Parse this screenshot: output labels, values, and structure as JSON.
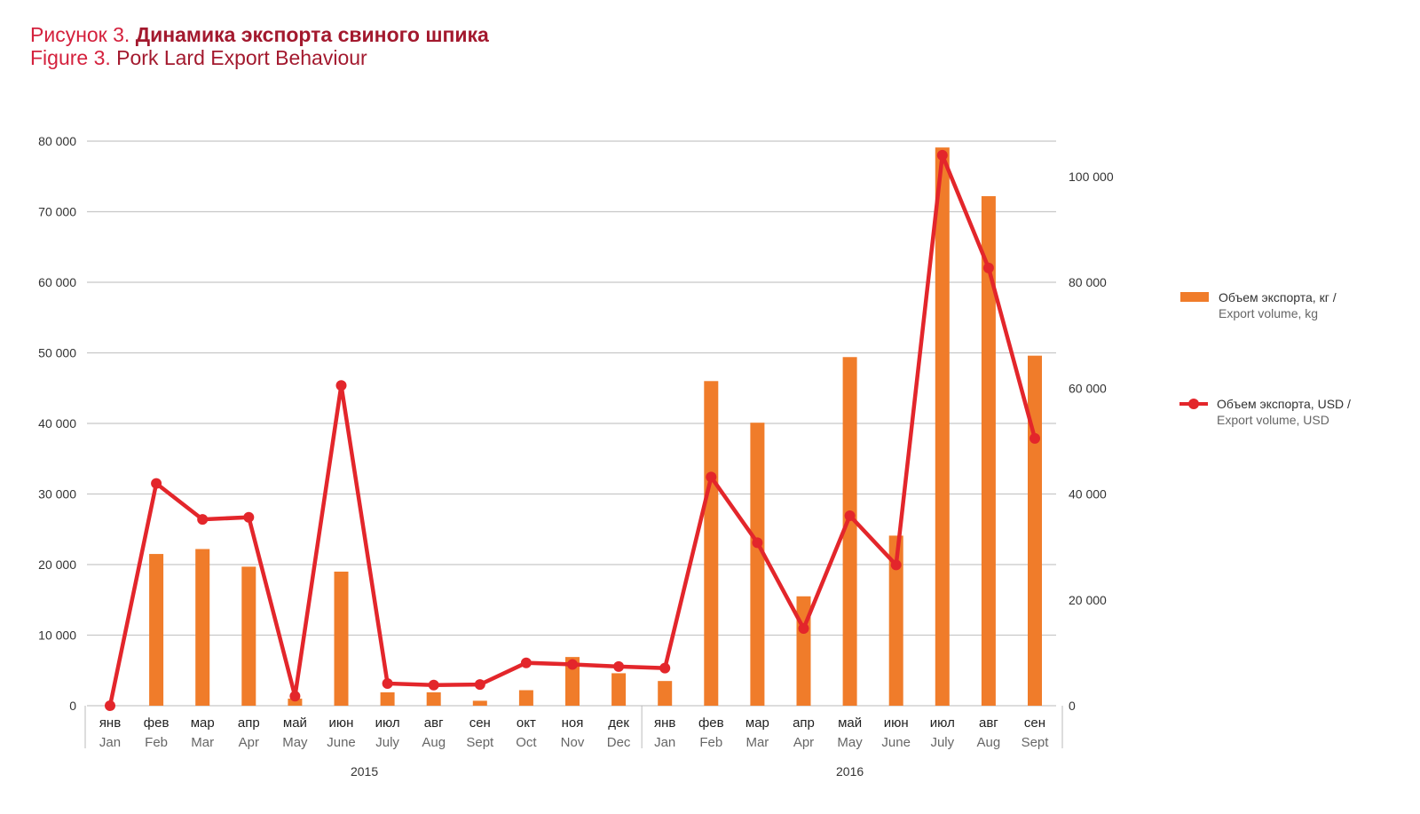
{
  "title": {
    "ru_prefix": "Рисунок 3.",
    "ru_main": "Динамика экспорта свиного шпика",
    "en_prefix": "Figure 3.",
    "en_main": "Pork Lard Export Behaviour"
  },
  "chart_data": {
    "type": "bar+line",
    "categories_ru": [
      "янв",
      "фев",
      "мар",
      "апр",
      "май",
      "июн",
      "июл",
      "авг",
      "сен",
      "окт",
      "ноя",
      "дек",
      "янв",
      "фев",
      "мар",
      "апр",
      "май",
      "июн",
      "июл",
      "авг",
      "сен"
    ],
    "categories_en": [
      "Jan",
      "Feb",
      "Mar",
      "Apr",
      "May",
      "June",
      "July",
      "Aug",
      "Sept",
      "Oct",
      "Nov",
      "Dec",
      "Jan",
      "Feb",
      "Mar",
      "Apr",
      "May",
      "June",
      "July",
      "Aug",
      "Sept"
    ],
    "years": [
      {
        "label": "2015",
        "start_index": 0,
        "end_index": 11
      },
      {
        "label": "2016",
        "start_index": 12,
        "end_index": 20
      }
    ],
    "series": [
      {
        "name_ru": "Объем экспорта, кг /",
        "name_en": "Export volume, kg",
        "kind": "bar",
        "axis": "left",
        "color": "#f07c2a",
        "values": [
          0,
          21500,
          22200,
          19700,
          1000,
          19000,
          1900,
          1900,
          700,
          2200,
          6900,
          4600,
          3500,
          46000,
          40100,
          15500,
          49400,
          24100,
          79100,
          72200,
          49600
        ]
      },
      {
        "name_ru": "Объем экспорта, USD /",
        "name_en": "Export volume, USD",
        "kind": "line",
        "axis": "right",
        "color": "#e3262b",
        "values": [
          0,
          42000,
          35200,
          35600,
          1800,
          60500,
          4200,
          3900,
          4000,
          8100,
          7800,
          7400,
          7100,
          43200,
          30800,
          14600,
          35900,
          26600,
          104000,
          82700,
          50500
        ]
      }
    ],
    "y_left": {
      "min": 0,
      "max": 80000,
      "ticks": [
        0,
        10000,
        20000,
        30000,
        40000,
        50000,
        60000,
        70000,
        80000
      ],
      "tick_labels": [
        "0",
        "10 000",
        "20 000",
        "30 000",
        "40 000",
        "50 000",
        "60 000",
        "70 000",
        "80 000"
      ]
    },
    "y_right": {
      "min": 0,
      "max": 106667,
      "ticks": [
        0,
        20000,
        40000,
        60000,
        80000,
        100000
      ],
      "tick_labels": [
        "0",
        "20 000",
        "40 000",
        "60 000",
        "80 000",
        "100 000"
      ]
    },
    "grid": true,
    "legend_position": "right"
  }
}
